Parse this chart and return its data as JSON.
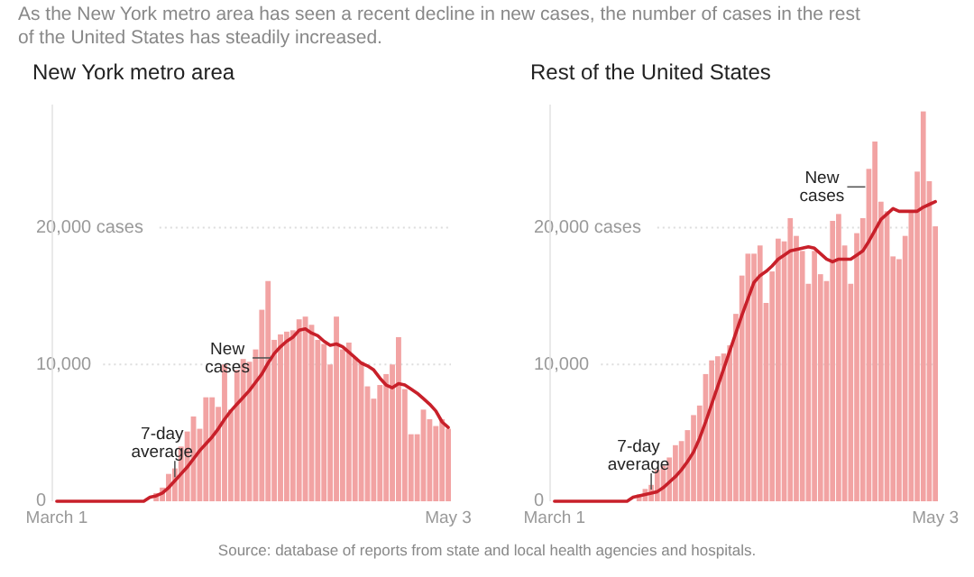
{
  "chart_data": [
    {
      "type": "bar",
      "title": "New York metro area",
      "subtitle": "As the New York metro area has seen a recent decline in new cases, the number of cases in the rest of the United States has steadily increased.",
      "categories": [
        "March 1",
        null,
        null,
        null,
        null,
        null,
        null,
        null,
        null,
        null,
        null,
        null,
        null,
        null,
        null,
        null,
        null,
        null,
        null,
        null,
        null,
        null,
        null,
        null,
        null,
        null,
        null,
        null,
        null,
        null,
        null,
        null,
        null,
        null,
        null,
        null,
        null,
        null,
        null,
        null,
        null,
        null,
        null,
        null,
        null,
        null,
        null,
        null,
        null,
        null,
        null,
        null,
        null,
        null,
        null,
        null,
        null,
        null,
        null,
        null,
        null,
        null,
        null,
        "May 3"
      ],
      "series": [
        {
          "name": "New cases",
          "color": "#f2a3a3",
          "values": [
            0,
            0,
            0,
            0,
            0,
            0,
            0,
            0,
            0,
            0,
            0,
            0,
            0,
            0,
            0,
            0,
            600,
            1000,
            2000,
            2400,
            4000,
            5100,
            6200,
            5300,
            7600,
            7600,
            6900,
            10000,
            6700,
            9600,
            10400,
            10200,
            11100,
            14000,
            16100,
            11800,
            12200,
            12400,
            12500,
            13300,
            13500,
            12900,
            11800,
            11500,
            10000,
            13500,
            11100,
            11600,
            10500,
            10200,
            8400,
            7500,
            8500,
            9300,
            10000,
            12000,
            8200,
            4900,
            4900,
            6700,
            6000,
            5500,
            6000,
            5300
          ]
        },
        {
          "type": "line",
          "name": "7-day average",
          "color": "#c8202a",
          "values": [
            0,
            0,
            0,
            0,
            0,
            0,
            0,
            0,
            0,
            0,
            0,
            0,
            0,
            0,
            0,
            300,
            400,
            600,
            1000,
            1500,
            2000,
            2500,
            3100,
            3700,
            4200,
            4700,
            5300,
            6000,
            6600,
            7100,
            7600,
            8100,
            8700,
            9300,
            10100,
            10800,
            11300,
            11700,
            12000,
            12500,
            12600,
            12300,
            12100,
            11700,
            11400,
            11500,
            11300,
            10900,
            10500,
            10100,
            9900,
            9600,
            9000,
            8500,
            8300,
            8600,
            8500,
            8200,
            7900,
            7500,
            7100,
            6600,
            5800,
            5400
          ]
        }
      ],
      "ylim": [
        0,
        29000
      ],
      "yticks": [
        0,
        "10,000",
        {
          "value": 20000,
          "label": "20,000 cases"
        }
      ],
      "grid": "y"
    },
    {
      "type": "bar",
      "title": "Rest of the United States",
      "categories": [
        "March 1",
        null,
        null,
        null,
        null,
        null,
        null,
        null,
        null,
        null,
        null,
        null,
        null,
        null,
        null,
        null,
        null,
        null,
        null,
        null,
        null,
        null,
        null,
        null,
        null,
        null,
        null,
        null,
        null,
        null,
        null,
        null,
        null,
        null,
        null,
        null,
        null,
        null,
        null,
        null,
        null,
        null,
        null,
        null,
        null,
        null,
        null,
        null,
        null,
        null,
        null,
        null,
        null,
        null,
        null,
        null,
        null,
        null,
        null,
        null,
        null,
        null,
        null,
        "May 3"
      ],
      "series": [
        {
          "name": "New cases",
          "color": "#f2a3a3",
          "values": [
            0,
            0,
            0,
            0,
            0,
            0,
            0,
            0,
            0,
            0,
            0,
            0,
            0,
            0,
            500,
            900,
            1200,
            2300,
            2600,
            3200,
            4100,
            4400,
            5200,
            6300,
            7000,
            9300,
            10300,
            10600,
            10800,
            11400,
            13700,
            16500,
            18100,
            18100,
            18700,
            14500,
            16800,
            19200,
            19000,
            20700,
            19400,
            18300,
            15900,
            18300,
            16600,
            16100,
            20500,
            21000,
            18700,
            15900,
            19600,
            20700,
            24300,
            26300,
            21900,
            21200,
            17900,
            17700,
            19400,
            21200,
            24100,
            28500,
            23400,
            20100
          ]
        },
        {
          "type": "line",
          "name": "7-day average",
          "color": "#c8202a",
          "values": [
            0,
            0,
            0,
            0,
            0,
            0,
            0,
            0,
            0,
            0,
            0,
            0,
            0,
            300,
            400,
            500,
            600,
            700,
            1000,
            1400,
            1800,
            2300,
            2900,
            3600,
            4600,
            5800,
            7100,
            8400,
            9700,
            11000,
            12300,
            13600,
            14800,
            16000,
            16500,
            16800,
            17200,
            17700,
            18000,
            18300,
            18400,
            18500,
            18600,
            18500,
            18100,
            17700,
            17500,
            17700,
            17700,
            17700,
            18000,
            18300,
            19000,
            19800,
            20600,
            21000,
            21400,
            21200,
            21200,
            21200,
            21200,
            21500,
            21700,
            21900
          ]
        }
      ],
      "ylim": [
        0,
        29000
      ],
      "yticks": [
        0,
        "10,000",
        {
          "value": 20000,
          "label": "20,000 cases"
        }
      ],
      "grid": "y",
      "annotations": [
        "Source: database of reports from state and local health agencies and hospitals."
      ]
    }
  ]
}
